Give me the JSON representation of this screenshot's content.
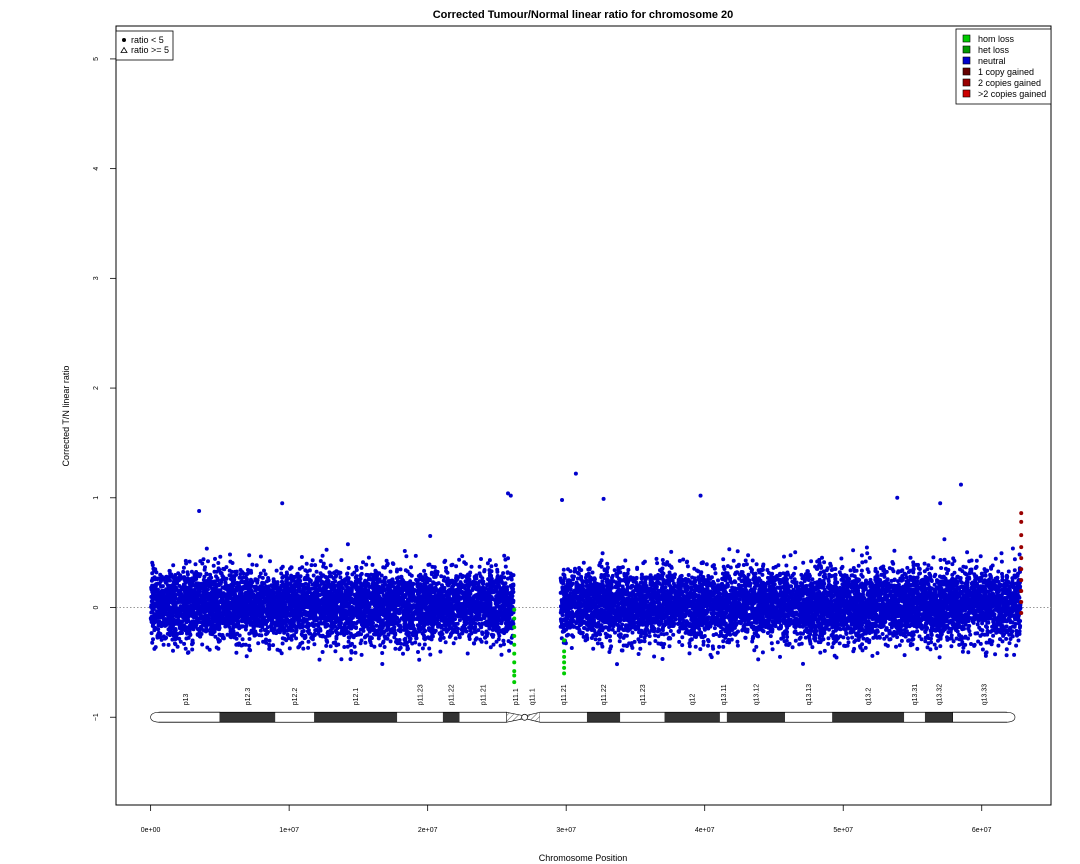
{
  "chart_data": {
    "type": "scatter",
    "title": "Corrected Tumour/Normal linear ratio for chromosome  20",
    "xlabel": "Chromosome Position",
    "ylabel": "Corrected T/N linear ratio",
    "xlim": [
      -2500000,
      65000000
    ],
    "ylim": [
      -1.8,
      5.3
    ],
    "x_ticks": [
      {
        "value": 0,
        "label": "0e+00"
      },
      {
        "value": 10000000,
        "label": "1e+07"
      },
      {
        "value": 20000000,
        "label": "2e+07"
      },
      {
        "value": 30000000,
        "label": "3e+07"
      },
      {
        "value": 40000000,
        "label": "4e+07"
      },
      {
        "value": 50000000,
        "label": "5e+07"
      },
      {
        "value": 60000000,
        "label": "6e+07"
      }
    ],
    "y_ticks": [
      {
        "value": -1,
        "label": "−1"
      },
      {
        "value": 0,
        "label": "0"
      },
      {
        "value": 1,
        "label": "1"
      },
      {
        "value": 2,
        "label": "2"
      },
      {
        "value": 3,
        "label": "3"
      },
      {
        "value": 4,
        "label": "4"
      },
      {
        "value": 5,
        "label": "5"
      }
    ],
    "reference_line_y": 0,
    "shape_legend": {
      "position": "top-left",
      "entries": [
        {
          "label": "ratio < 5",
          "shape": "dot"
        },
        {
          "label": "ratio >= 5",
          "shape": "triangle"
        }
      ]
    },
    "color_legend": {
      "position": "top-right",
      "entries": [
        {
          "label": "hom loss",
          "color": "#00cc00"
        },
        {
          "label": "het loss",
          "color": "#009900"
        },
        {
          "label": "neutral",
          "color": "#0000cc"
        },
        {
          "label": "1 copy gained",
          "color": "#660000"
        },
        {
          "label": "2 copies gained",
          "color": "#990000"
        },
        {
          "label": ">2 copies gained",
          "color": "#cc0000"
        }
      ]
    },
    "series": [
      {
        "name": "neutral",
        "color": "#0000cc",
        "segments": [
          {
            "x_start": 0,
            "x_end": 26200000,
            "mean": 0.02,
            "spread": 0.16
          },
          {
            "x_start": 29600000,
            "x_end": 62800000,
            "mean": 0.02,
            "spread": 0.16
          }
        ],
        "outliers": [
          {
            "x": 25800000,
            "y": 1.04
          },
          {
            "x": 26000000,
            "y": 1.02
          },
          {
            "x": 29700000,
            "y": 0.98
          },
          {
            "x": 30700000,
            "y": 1.22
          },
          {
            "x": 32700000,
            "y": 0.99
          },
          {
            "x": 39700000,
            "y": 1.02
          },
          {
            "x": 58500000,
            "y": 1.12
          },
          {
            "x": 53900000,
            "y": 1.0
          },
          {
            "x": 57000000,
            "y": 0.95
          },
          {
            "x": 9500000,
            "y": 0.95
          },
          {
            "x": 3500000,
            "y": 0.88
          }
        ]
      },
      {
        "name": "het loss",
        "color": "#00cc00",
        "points": [
          {
            "x": 26250000,
            "y": -0.02
          },
          {
            "x": 26250000,
            "y": -0.1
          },
          {
            "x": 26250000,
            "y": -0.18
          },
          {
            "x": 26250000,
            "y": -0.26
          },
          {
            "x": 26250000,
            "y": -0.34
          },
          {
            "x": 26250000,
            "y": -0.42
          },
          {
            "x": 26250000,
            "y": -0.5
          },
          {
            "x": 26250000,
            "y": -0.58
          },
          {
            "x": 26250000,
            "y": -0.62
          },
          {
            "x": 26250000,
            "y": -0.68
          },
          {
            "x": 29850000,
            "y": -0.3
          },
          {
            "x": 29850000,
            "y": -0.4
          },
          {
            "x": 29850000,
            "y": -0.45
          },
          {
            "x": 29850000,
            "y": -0.5
          },
          {
            "x": 29850000,
            "y": -0.55
          },
          {
            "x": 29850000,
            "y": -0.6
          }
        ]
      },
      {
        "name": "2 copies gained",
        "color": "#990000",
        "points": [
          {
            "x": 62850000,
            "y": 0.86
          },
          {
            "x": 62850000,
            "y": 0.78
          },
          {
            "x": 62850000,
            "y": 0.66
          },
          {
            "x": 62850000,
            "y": 0.55
          },
          {
            "x": 62850000,
            "y": 0.45
          },
          {
            "x": 62850000,
            "y": 0.35
          },
          {
            "x": 62850000,
            "y": 0.25
          },
          {
            "x": 62850000,
            "y": 0.15
          },
          {
            "x": 62850000,
            "y": 0.05
          },
          {
            "x": 62850000,
            "y": -0.05
          }
        ]
      }
    ],
    "ideogram": {
      "y": -1,
      "x_start": 0,
      "x_end": 62400000,
      "centromere": 27000000,
      "bands": [
        {
          "name": "p13",
          "start": 0,
          "end": 5000000,
          "stain": "white"
        },
        {
          "name": "p12.3",
          "start": 5000000,
          "end": 9000000,
          "stain": "dark"
        },
        {
          "name": "p12.2",
          "start": 9000000,
          "end": 11800000,
          "stain": "white"
        },
        {
          "name": "p12.1",
          "start": 11800000,
          "end": 17800000,
          "stain": "dark"
        },
        {
          "name": "p11.23",
          "start": 17800000,
          "end": 21100000,
          "stain": "white"
        },
        {
          "name": "p11.22",
          "start": 21100000,
          "end": 22300000,
          "stain": "dark"
        },
        {
          "name": "p11.21",
          "start": 22300000,
          "end": 25700000,
          "stain": "white"
        },
        {
          "name": "p11.1",
          "start": 25700000,
          "end": 27000000,
          "stain": "hatch"
        },
        {
          "name": "q11.1",
          "start": 27000000,
          "end": 28100000,
          "stain": "hatch"
        },
        {
          "name": "q11.21",
          "start": 28100000,
          "end": 31500000,
          "stain": "white"
        },
        {
          "name": "q11.22",
          "start": 31500000,
          "end": 33900000,
          "stain": "dark"
        },
        {
          "name": "q11.23",
          "start": 33900000,
          "end": 37100000,
          "stain": "white"
        },
        {
          "name": "q12",
          "start": 37100000,
          "end": 41100000,
          "stain": "dark"
        },
        {
          "name": "q13.11",
          "start": 41100000,
          "end": 41600000,
          "stain": "white"
        },
        {
          "name": "q13.12",
          "start": 41600000,
          "end": 45800000,
          "stain": "dark"
        },
        {
          "name": "q13.13",
          "start": 45800000,
          "end": 49200000,
          "stain": "white"
        },
        {
          "name": "q13.2",
          "start": 49200000,
          "end": 54400000,
          "stain": "dark"
        },
        {
          "name": "q13.31",
          "start": 54400000,
          "end": 55900000,
          "stain": "white"
        },
        {
          "name": "q13.32",
          "start": 55900000,
          "end": 57900000,
          "stain": "dark"
        },
        {
          "name": "q13.33",
          "start": 57900000,
          "end": 62400000,
          "stain": "white"
        }
      ]
    }
  }
}
